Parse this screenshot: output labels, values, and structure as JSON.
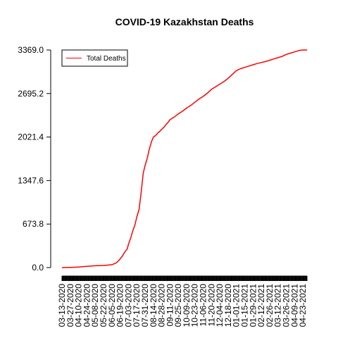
{
  "chart_data": {
    "type": "line",
    "title": "COVID-19 Kazakhstan Deaths",
    "xlabel": "",
    "ylabel": "",
    "ylim": [
      0,
      3369
    ],
    "yticks": [
      "0.0",
      "673.8",
      "1347.6",
      "2021.4",
      "2695.2",
      "3369.0"
    ],
    "ytick_values": [
      0,
      673.8,
      1347.6,
      2021.4,
      2695.2,
      3369
    ],
    "xtick_labels": [
      "03-13-2020",
      "03-27-2020",
      "04-10-2020",
      "04-24-2020",
      "05-08-2020",
      "05-22-2020",
      "06-05-2020",
      "06-19-2020",
      "07-03-2020",
      "07-17-2020",
      "07-31-2020",
      "08-14-2020",
      "08-28-2020",
      "09-11-2020",
      "09-25-2020",
      "10-09-2020",
      "10-23-2020",
      "11-06-2020",
      "11-20-2020",
      "12-04-2020",
      "12-18-2020",
      "01-01-2021",
      "01-15-2021",
      "01-29-2021",
      "02-12-2021",
      "02-26-2021",
      "03-12-2021",
      "03-26-2021",
      "04-09-2021",
      "04-23-2021"
    ],
    "legend": {
      "position": "top-left",
      "entries": [
        "Total Deaths"
      ]
    },
    "grid": false,
    "series": [
      {
        "name": "Total Deaths",
        "color": "#ff0000",
        "x": [
          "03-13-2020",
          "03-27-2020",
          "04-10-2020",
          "04-24-2020",
          "05-08-2020",
          "05-22-2020",
          "05-29-2020",
          "06-05-2020",
          "06-12-2020",
          "06-16-2020",
          "06-19-2020",
          "06-23-2020",
          "06-26-2020",
          "07-01-2020",
          "07-03-2020",
          "07-07-2020",
          "07-10-2020",
          "07-14-2020",
          "07-17-2020",
          "07-21-2020",
          "07-24-2020",
          "07-28-2020",
          "07-31-2020",
          "08-04-2020",
          "08-07-2020",
          "08-11-2020",
          "08-14-2020",
          "08-18-2020",
          "08-21-2020",
          "08-25-2020",
          "08-28-2020",
          "09-01-2020",
          "09-04-2020",
          "09-08-2020",
          "09-11-2020",
          "09-18-2020",
          "09-25-2020",
          "10-02-2020",
          "10-09-2020",
          "10-16-2020",
          "10-23-2020",
          "10-30-2020",
          "11-06-2020",
          "11-13-2020",
          "11-20-2020",
          "11-27-2020",
          "12-04-2020",
          "12-11-2020",
          "12-18-2020",
          "12-25-2020",
          "01-01-2021",
          "01-08-2021",
          "01-15-2021",
          "01-22-2021",
          "01-29-2021",
          "02-05-2021",
          "02-12-2021",
          "02-19-2021",
          "02-26-2021",
          "03-05-2021",
          "03-12-2021",
          "03-19-2021",
          "03-26-2021",
          "04-02-2021",
          "04-09-2021",
          "04-16-2021",
          "04-23-2021",
          "04-30-2021"
        ],
        "values": [
          0,
          3,
          8,
          20,
          28,
          33,
          38,
          45,
          70,
          100,
          135,
          180,
          230,
          290,
          360,
          460,
          560,
          660,
          780,
          900,
          1130,
          1460,
          1580,
          1700,
          1830,
          1950,
          2020,
          2045,
          2080,
          2110,
          2140,
          2175,
          2210,
          2250,
          2290,
          2330,
          2380,
          2420,
          2470,
          2510,
          2560,
          2610,
          2650,
          2700,
          2760,
          2800,
          2840,
          2880,
          2930,
          2990,
          3050,
          3080,
          3100,
          3120,
          3140,
          3160,
          3175,
          3190,
          3210,
          3230,
          3250,
          3270,
          3300,
          3320,
          3340,
          3360,
          3369,
          3369
        ]
      }
    ]
  }
}
